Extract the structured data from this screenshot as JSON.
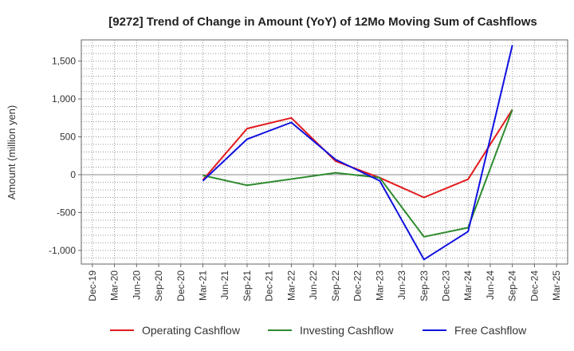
{
  "chart_data": {
    "type": "line",
    "title": "[9272]  Trend of Change in Amount (YoY) of 12Mo Moving Sum of Cashflows",
    "xlabel": "",
    "ylabel": "Amount (million yen)",
    "categories": [
      "Dec-19",
      "Mar-20",
      "Jun-20",
      "Sep-20",
      "Dec-20",
      "Mar-21",
      "Jun-21",
      "Sep-21",
      "Dec-21",
      "Mar-22",
      "Jun-22",
      "Sep-22",
      "Dec-22",
      "Mar-23",
      "Jun-23",
      "Sep-23",
      "Dec-23",
      "Mar-24",
      "Jun-24",
      "Sep-24",
      "Dec-24",
      "Mar-25"
    ],
    "y_ticks": [
      1500,
      1000,
      500,
      0,
      -500,
      -1000
    ],
    "y_tick_labels": [
      "1,500",
      "1,000",
      "500",
      "0",
      "-500",
      "-1,000"
    ],
    "ylim": [
      -1180,
      1780
    ],
    "grid": true,
    "legend_position": "bottom",
    "series": [
      {
        "name": "Operating Cashflow",
        "color": "#e31a1c",
        "values": [
          null,
          null,
          null,
          null,
          null,
          -70,
          null,
          610,
          null,
          750,
          null,
          180,
          null,
          -40,
          null,
          -300,
          null,
          -60,
          null,
          860,
          null,
          null
        ]
      },
      {
        "name": "Investing Cashflow",
        "color": "#2e8b2e",
        "values": [
          null,
          null,
          null,
          null,
          null,
          -10,
          null,
          -140,
          null,
          null,
          null,
          25,
          null,
          -40,
          null,
          -820,
          null,
          -700,
          null,
          860,
          null,
          null
        ]
      },
      {
        "name": "Free Cashflow",
        "color": "#1010e0",
        "values": [
          null,
          null,
          null,
          null,
          null,
          -80,
          null,
          470,
          null,
          690,
          null,
          200,
          null,
          -80,
          null,
          -1120,
          null,
          -750,
          null,
          1710,
          null,
          null
        ]
      }
    ]
  }
}
